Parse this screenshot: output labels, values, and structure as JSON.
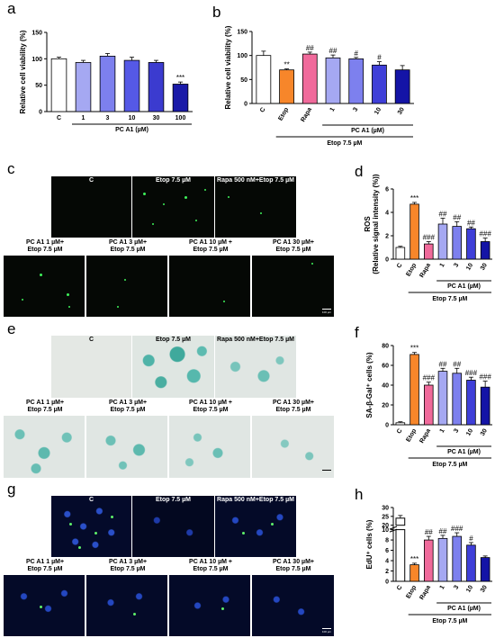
{
  "panels": {
    "a": {
      "letter": "a"
    },
    "b": {
      "letter": "b"
    },
    "c": {
      "letter": "c"
    },
    "d": {
      "letter": "d"
    },
    "e": {
      "letter": "e"
    },
    "f": {
      "letter": "f"
    },
    "g": {
      "letter": "g"
    },
    "h": {
      "letter": "h"
    }
  },
  "micro_labels": {
    "control": "C",
    "etop": "Etop 7.5 µM",
    "rapa_etop": "Rapa 500 nM+Etop 7.5 µM",
    "pc1": [
      "PC A1 1 µM+",
      "Etop 7.5 µM"
    ],
    "pc3": [
      "PC A1 3 µM+",
      "Etop 7.5 µM"
    ],
    "pc10": [
      "PC A1 10 µM +",
      "Etop 7.5 µM"
    ],
    "pc30": [
      "PC A1 30 µM+",
      "Etop 7.5 µM"
    ],
    "scale": "100 µm"
  },
  "colors": {
    "white": "#ffffff",
    "etop_orange": "#f7862a",
    "rapa_pink": "#f06a9b",
    "pc1": "#a5a8f2",
    "pc3": "#7d80ee",
    "pc10": "#3f3fd8",
    "pc30": "#1414a6",
    "pca_seq": [
      "#ffffff",
      "#a5a8f2",
      "#7d80ee",
      "#5559e6",
      "#3b3bcf",
      "#1a1aa8"
    ]
  },
  "chart_data": [
    {
      "id": "a",
      "type": "bar",
      "ylabel": "Relative cell viability (%)",
      "ylim": [
        0,
        150
      ],
      "yticks": [
        0,
        50,
        100,
        150
      ],
      "categories": [
        "C",
        "1",
        "3",
        "10",
        "30",
        "100"
      ],
      "values": [
        100,
        93,
        105,
        97,
        93,
        52
      ],
      "errors": [
        3,
        4,
        5,
        6,
        4,
        4
      ],
      "annotations": [
        "",
        "",
        "",
        "",
        "",
        "***"
      ],
      "group_label": "PC A1 (µM)"
    },
    {
      "id": "b",
      "type": "bar",
      "ylabel": "Relative cell viability (%)",
      "ylim": [
        0,
        150
      ],
      "yticks": [
        0,
        50,
        100,
        150
      ],
      "categories": [
        "C",
        "Etop",
        "Rapa",
        "1",
        "3",
        "10",
        "30"
      ],
      "values": [
        100,
        70,
        103,
        95,
        93,
        80,
        70
      ],
      "errors": [
        9,
        2,
        4,
        6,
        3,
        7,
        9
      ],
      "annotations": [
        "",
        "**",
        "##",
        "##",
        "#",
        "#",
        ""
      ],
      "group_label": "PC A1 (µM)",
      "outer_label": "Etop 7.5 µM"
    },
    {
      "id": "d",
      "type": "bar",
      "ylabel": "ROS\n(Relative signal intensity (%))",
      "ylim": [
        0,
        6
      ],
      "yticks": [
        0,
        2,
        4,
        6
      ],
      "categories": [
        "C",
        "Etop",
        "Rapa",
        "1",
        "3",
        "10",
        "30"
      ],
      "values": [
        1.0,
        4.7,
        1.3,
        3.0,
        2.8,
        2.6,
        1.5
      ],
      "errors": [
        0.1,
        0.15,
        0.2,
        0.5,
        0.4,
        0.15,
        0.3
      ],
      "annotations": [
        "",
        "***",
        "###",
        "##",
        "##",
        "##",
        "###"
      ],
      "group_label": "PC A1 (µM)",
      "outer_label": "Etop 7.5 µM"
    },
    {
      "id": "f",
      "type": "bar",
      "ylabel": "SA-β-Gal⁺ cells (%)",
      "ylim": [
        0,
        80
      ],
      "yticks": [
        0,
        20,
        40,
        60,
        80
      ],
      "categories": [
        "C",
        "Etop",
        "Rapa",
        "1",
        "3",
        "10",
        "30"
      ],
      "values": [
        2,
        71,
        40,
        54,
        52,
        45,
        38
      ],
      "errors": [
        1,
        2,
        3,
        3,
        5,
        3,
        6
      ],
      "annotations": [
        "",
        "***",
        "###",
        "##",
        "##",
        "###",
        "###"
      ],
      "group_label": "PC A1 (µM)",
      "outer_label": "Etop 7.5 µM"
    },
    {
      "id": "h",
      "type": "bar",
      "ylabel": "EdU⁺ cells (%)",
      "ylim": [
        0,
        30
      ],
      "yticks": [
        0,
        2,
        4,
        6,
        8,
        10,
        20,
        25,
        30
      ],
      "categories": [
        "C",
        "Etop",
        "Rapa",
        "1",
        "3",
        "10",
        "30"
      ],
      "values": [
        24,
        3.2,
        8,
        8.3,
        8.7,
        7,
        4.6
      ],
      "errors": [
        1.5,
        0.3,
        0.7,
        0.6,
        0.7,
        0.5,
        0.3
      ],
      "annotations": [
        "",
        "***",
        "##",
        "##",
        "###",
        "#",
        ""
      ],
      "group_label": "PC A1 (µM)",
      "outer_label": "Etop 7.5 µM"
    }
  ]
}
